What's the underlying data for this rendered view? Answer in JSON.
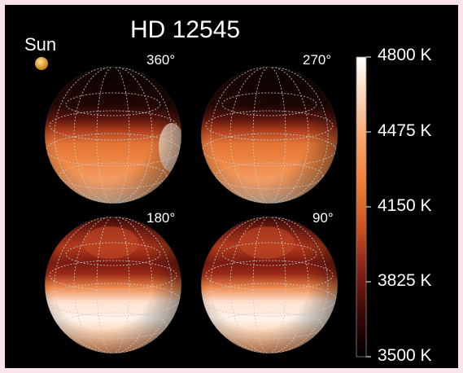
{
  "figure": {
    "title": "HD 12545",
    "sun_label": "Sun"
  },
  "panels": [
    {
      "phase": "360°",
      "spot": "north-polar dark cap"
    },
    {
      "phase": "270°",
      "spot": "north-polar dark cap"
    },
    {
      "phase": "180°",
      "spot": "mid-latitude dark band"
    },
    {
      "phase": "90°",
      "spot": "mid-latitude dark band"
    }
  ],
  "colorbar": {
    "min_label": "3500 K",
    "max_label": "4800 K",
    "tick_labels": [
      "4800 K",
      "4475 K",
      "4150 K",
      "3825 K",
      "3500 K"
    ],
    "colors": [
      "#ffffff",
      "#f9b488",
      "#f08a42",
      "#d96025",
      "#a8381c",
      "#6e1810",
      "#3a0805",
      "#000000"
    ]
  },
  "colors": {
    "background": "#000000",
    "border": "#fbe3ea",
    "sun": "#e2a43a",
    "grid": "#c8c8c8"
  }
}
